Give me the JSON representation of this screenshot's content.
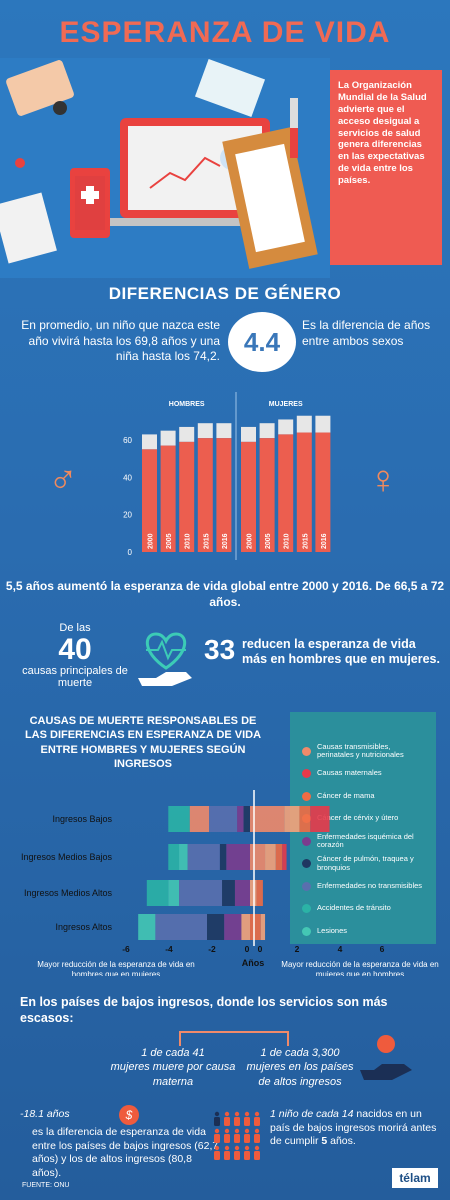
{
  "title": "ESPERANZA DE VIDA",
  "info_box": "La Organización Mundial de la Salud advierte que el acceso desigual a servicios de salud genera diferencias en las expectativas de vida entre los países.",
  "gender": {
    "heading": "DIFERENCIAS DE GÉNERO",
    "intro_left": "En promedio, un niño que nazca este año vivirá hasta los 69,8 años y una niña hasta los 74,2.",
    "circle_value": "4.4",
    "intro_right": "Es la diferencia de años entre ambos sexos",
    "male_symbol": "♂",
    "female_symbol": "♀"
  },
  "summary": "5,5 años aumentó la esperanza de vida global entre 2000 y 2016. De 66,5 a 72 años.",
  "causes": {
    "prefix": "De las",
    "number": "40",
    "suffix": "causas principales de muerte",
    "n33": "33",
    "t33": "reducen la esperanza de vida más en hombres que en mujeres."
  },
  "causes_heading": "CAUSAS DE MUERTE RESPONSABLES DE LAS DIFERENCIAS EN ESPERANZA DE VIDA ENTRE HOMBRES Y MUJERES SEGÚN INGRESOS",
  "legend": [
    {
      "label": "Causas transmisibles, perinatales y nutricionales",
      "color": "#f08a6a"
    },
    {
      "label": "Causas maternales",
      "color": "#e83a4a"
    },
    {
      "label": "Cáncer de mama",
      "color": "#f06c44"
    },
    {
      "label": "Cáncer de cérvix y útero",
      "color": "#f5a37a"
    },
    {
      "label": "Enfermedades isquémica del corazón",
      "color": "#7b3c8e"
    },
    {
      "label": "Cáncer de pulmón, traquea y bronquios",
      "color": "#1f3761"
    },
    {
      "label": "Enfermedades no transmisibles",
      "color": "#5a6fae"
    },
    {
      "label": "Accidentes de tránsito",
      "color": "#2bb3a6"
    },
    {
      "label": "Lesiones",
      "color": "#44c7b4"
    }
  ],
  "chart_data": [
    {
      "type": "bar",
      "groups": [
        "HOMBRES",
        "MUJERES"
      ],
      "categories": [
        "2000",
        "2005",
        "2010",
        "2015",
        "2016",
        "2000",
        "2005",
        "2010",
        "2015",
        "2016"
      ],
      "series": [
        {
          "values": [
            55,
            57,
            59,
            61,
            61,
            59,
            61,
            63,
            64,
            64
          ]
        },
        {
          "values": [
            63,
            65,
            67,
            69,
            69,
            67,
            69,
            71,
            73,
            73
          ]
        }
      ],
      "yticks": [
        0,
        20,
        40,
        60
      ],
      "ylim": [
        0,
        75
      ]
    },
    {
      "type": "bar",
      "orientation": "horizontal-stacked",
      "categories": [
        "Ingresos Bajos",
        "Ingresos Medios Bajos",
        "Ingresos Medios Altos",
        "Ingresos Altos"
      ],
      "xticks": [
        "-6",
        "-4",
        "-2",
        "0",
        "0",
        "2",
        "4",
        "6"
      ],
      "xlabel": "Años",
      "left_note": "Mayor reducción de la esperanza de vida en hombres que en mujeres",
      "right_note": "Mayor reducción de la esperanza de vida en mujeres que en hombres",
      "rows": [
        {
          "left": [
            {
              "c": 7,
              "v": 1.0
            },
            {
              "c": 0,
              "v": 0.9
            },
            {
              "c": 6,
              "v": 1.3
            },
            {
              "c": 4,
              "v": 0.3
            },
            {
              "c": 5,
              "v": 0.3
            }
          ],
          "right": [
            {
              "c": 0,
              "v": 1.6
            },
            {
              "c": 3,
              "v": 0.7
            },
            {
              "c": 2,
              "v": 0.5
            },
            {
              "c": 1,
              "v": 0.9
            }
          ]
        },
        {
          "left": [
            {
              "c": 7,
              "v": 0.5
            },
            {
              "c": 8,
              "v": 0.4
            },
            {
              "c": 6,
              "v": 1.5
            },
            {
              "c": 5,
              "v": 0.3
            },
            {
              "c": 4,
              "v": 1.1
            }
          ],
          "right": [
            {
              "c": 0,
              "v": 0.7
            },
            {
              "c": 3,
              "v": 0.5
            },
            {
              "c": 2,
              "v": 0.3
            },
            {
              "c": 1,
              "v": 0.2
            }
          ]
        },
        {
          "left": [
            {
              "c": 7,
              "v": 1.0
            },
            {
              "c": 8,
              "v": 0.5
            },
            {
              "c": 6,
              "v": 2.0
            },
            {
              "c": 5,
              "v": 0.6
            },
            {
              "c": 4,
              "v": 0.7
            }
          ],
          "right": [
            {
              "c": 3,
              "v": 0.3
            },
            {
              "c": 2,
              "v": 0.3
            }
          ]
        },
        {
          "left": [
            {
              "c": 8,
              "v": 0.8
            },
            {
              "c": 6,
              "v": 2.4
            },
            {
              "c": 5,
              "v": 0.8
            },
            {
              "c": 4,
              "v": 0.8
            },
            {
              "c": 3,
              "v": 0.4
            }
          ],
          "right": [
            {
              "c": 2,
              "v": 0.5
            },
            {
              "c": 3,
              "v": 0.2
            }
          ]
        }
      ]
    }
  ],
  "bottom": {
    "heading": "En los países de bajos ingresos, donde los servicios son más escasos:",
    "maternal_left_1": "1 de cada 41",
    "maternal_left_2": "mujeres muere por causa materna",
    "maternal_right_1": "1 de cada 3,300",
    "maternal_right_2": "mujeres en los países de altos ingresos",
    "diff_1": "-18.1 años",
    "diff_2": "es la diferencia de esperanza de vida entre los países de bajos ingresos (62,7 años) y los de altos ingresos (80,8 años).",
    "child_1": "1 niño de cada 14",
    "child_2": "nacidos en un país de bajos ingresos morirá antes de cumplir",
    "child_3": "5",
    "child_4": "años."
  },
  "source": "FUENTE: ONU",
  "logo": "télam"
}
